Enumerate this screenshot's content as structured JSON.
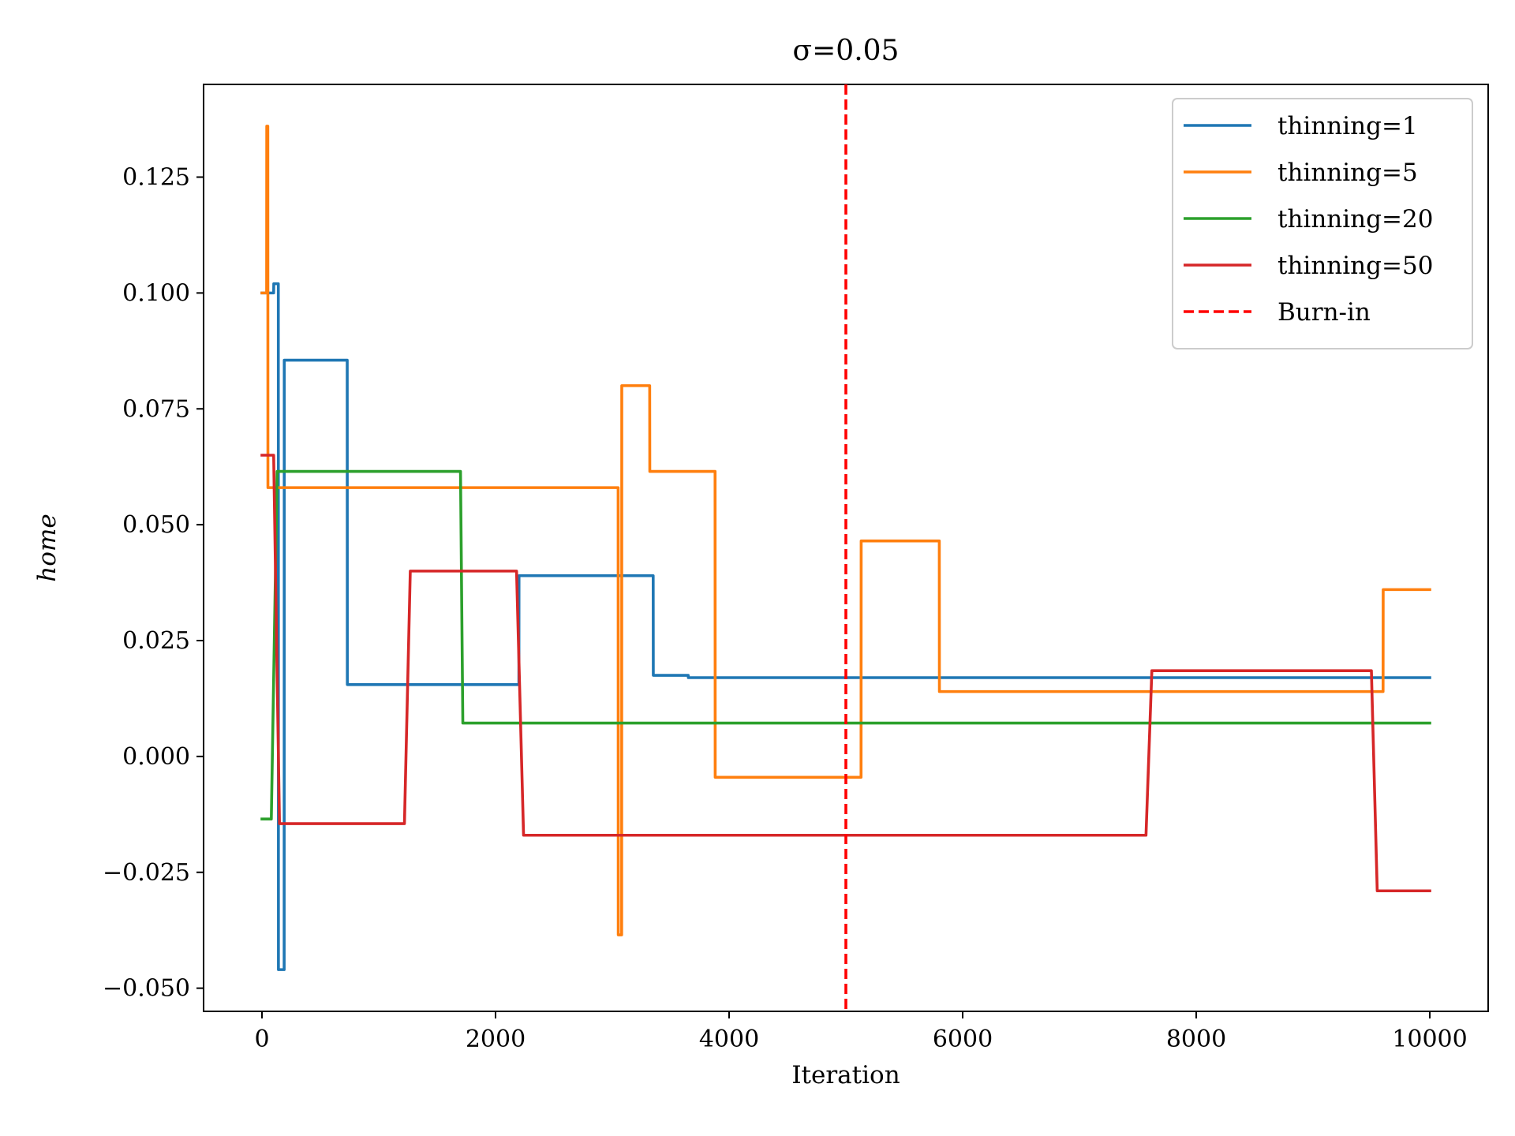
{
  "chart_data": {
    "type": "line",
    "title": "σ=0.05",
    "xlabel": "Iteration",
    "ylabel": "home",
    "xlim": [
      -500,
      10500
    ],
    "ylim": [
      -0.055,
      0.145
    ],
    "xticks": [
      0,
      2000,
      4000,
      6000,
      8000,
      10000
    ],
    "xtick_labels": [
      "0",
      "2000",
      "4000",
      "6000",
      "8000",
      "10000"
    ],
    "yticks": [
      -0.05,
      -0.025,
      0.0,
      0.025,
      0.05,
      0.075,
      0.1,
      0.125
    ],
    "ytick_labels": [
      "−0.050",
      "−0.025",
      "0.000",
      "0.025",
      "0.050",
      "0.075",
      "0.100",
      "0.125"
    ],
    "grid": false,
    "legend_position": "top-right",
    "series": [
      {
        "name": "thinning=1",
        "color": "#1f77b4",
        "x": [
          0,
          100,
          101,
          140,
          141,
          190,
          191,
          730,
          731,
          2200,
          2201,
          3350,
          3351,
          3650,
          3651,
          10000
        ],
        "y": [
          0.1,
          0.1,
          0.102,
          0.102,
          -0.046,
          -0.046,
          0.0855,
          0.0855,
          0.0155,
          0.0155,
          0.039,
          0.039,
          0.0175,
          0.0175,
          0.017,
          0.017
        ]
      },
      {
        "name": "thinning=5",
        "color": "#ff7f0e",
        "x": [
          0,
          40,
          41,
          50,
          51,
          3050,
          3051,
          3080,
          3081,
          3320,
          3321,
          3880,
          3881,
          5130,
          5131,
          5800,
          5801,
          9600,
          9601,
          10000
        ],
        "y": [
          0.1,
          0.1,
          0.136,
          0.136,
          0.058,
          0.058,
          -0.0385,
          -0.0385,
          0.08,
          0.08,
          0.0615,
          0.0615,
          -0.0045,
          -0.0045,
          0.0465,
          0.0465,
          0.014,
          0.014,
          0.036,
          0.036
        ],
        "note": ""
      },
      {
        "name": "thinning=20",
        "color": "#2ca02c",
        "x": [
          0,
          80,
          130,
          1700,
          1720,
          10000
        ],
        "y": [
          -0.0135,
          -0.0135,
          0.0615,
          0.0615,
          0.0072,
          0.0072
        ]
      },
      {
        "name": "thinning=50",
        "color": "#d62728",
        "x": [
          0,
          100,
          150,
          1220,
          1270,
          2180,
          2240,
          7570,
          7620,
          9500,
          9550,
          10000
        ],
        "y": [
          0.065,
          0.065,
          -0.0145,
          -0.0145,
          0.04,
          0.04,
          -0.017,
          -0.017,
          0.0185,
          0.0185,
          -0.029,
          -0.029
        ]
      }
    ],
    "vlines": [
      {
        "name": "Burn-in",
        "x": 5000,
        "color": "#ff0000",
        "style": "dashed"
      }
    ]
  }
}
